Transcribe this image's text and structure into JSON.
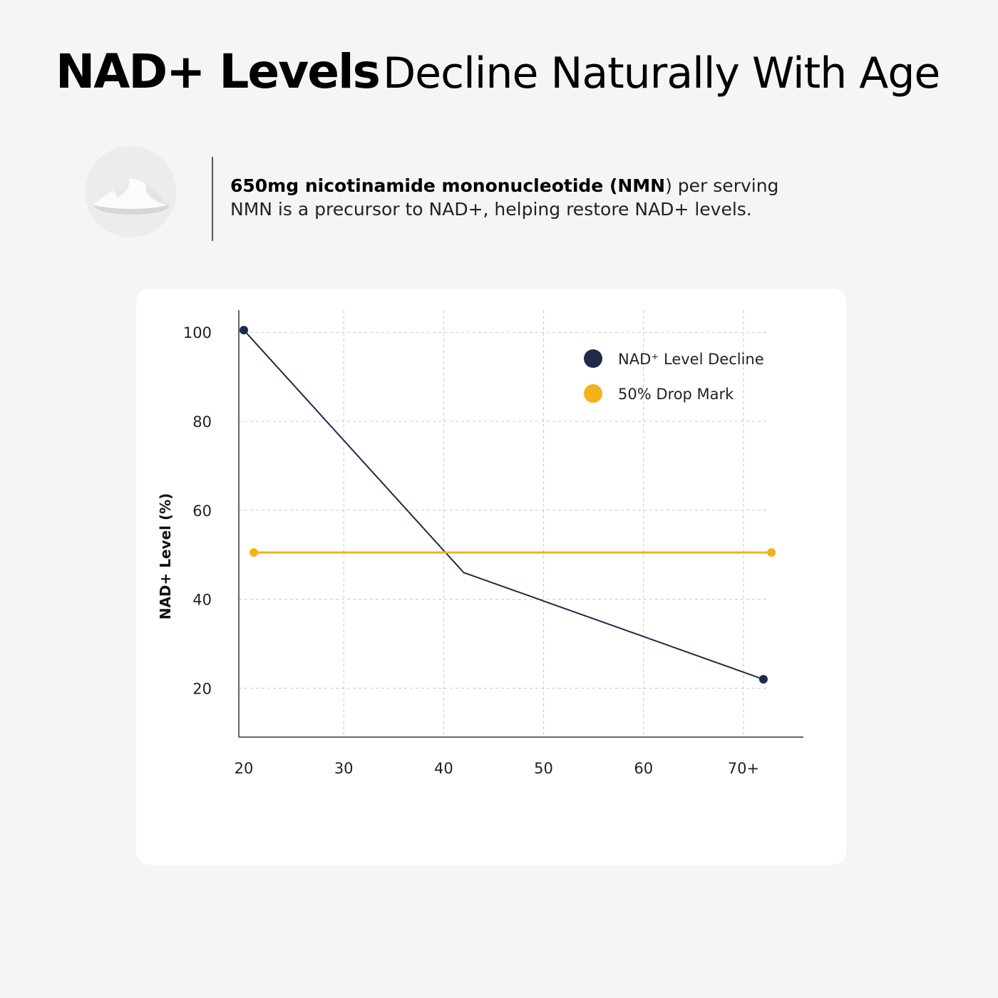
{
  "header": {
    "title_bold": "NAD+ Levels",
    "title_light": "Decline Naturally With Age"
  },
  "info": {
    "line1_bold": "650mg nicotinamide mononucleotide (NMN",
    "line1_rest": ") per serving",
    "line2": "NMN is a precursor to NAD+, helping restore NAD+ levels."
  },
  "colors": {
    "series_decline": "#1f2a4a",
    "series_drop": "#f5b11a",
    "grid": "#c8c8c8"
  },
  "chart_data": {
    "type": "line",
    "title": "",
    "xlabel": "",
    "ylabel": "NAD+ Level (%)",
    "x_ticks": [
      20,
      30,
      40,
      50,
      60,
      70
    ],
    "x_tick_labels": [
      "20",
      "30",
      "40",
      "50",
      "60",
      "70+"
    ],
    "y_ticks": [
      20,
      40,
      60,
      80,
      100
    ],
    "y_tick_labels": [
      "20",
      "40",
      "60",
      "80",
      "100"
    ],
    "xlim": [
      19.5,
      76
    ],
    "ylim": [
      9,
      105
    ],
    "grid": true,
    "legend_position": "top-right",
    "series": [
      {
        "name": "NAD⁺ Level Decline",
        "x": [
          20,
          42,
          72
        ],
        "y": [
          100.5,
          46,
          22
        ],
        "markers": "endpoints"
      },
      {
        "name": "50% Drop Mark",
        "x": [
          21,
          72.8
        ],
        "y": [
          50.5,
          50.5
        ],
        "markers": "endpoints"
      }
    ]
  }
}
